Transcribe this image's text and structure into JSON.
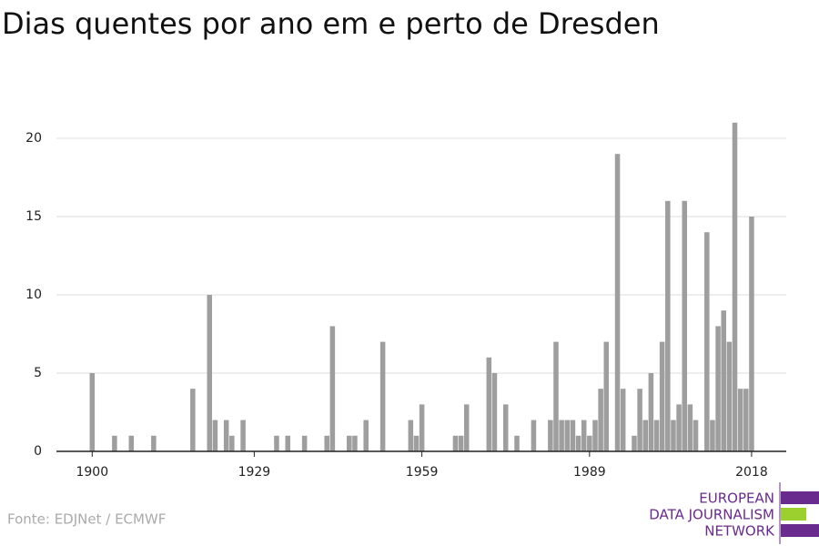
{
  "chart_data": {
    "type": "bar",
    "title": "Dias quentes por ano em e perto de Dresden",
    "source": "Fonte: EDJNet / ECMWF",
    "logo": [
      "EUROPEAN",
      "DATA JOURNALISM",
      "NETWORK"
    ],
    "color": "#9e9e9e",
    "x": [
      1900,
      1904,
      1907,
      1911,
      1918,
      1921,
      1922,
      1924,
      1925,
      1927,
      1933,
      1935,
      1938,
      1942,
      1943,
      1946,
      1947,
      1949,
      1952,
      1957,
      1958,
      1959,
      1965,
      1966,
      1967,
      1971,
      1972,
      1974,
      1976,
      1979,
      1982,
      1983,
      1984,
      1985,
      1986,
      1987,
      1988,
      1989,
      1990,
      1991,
      1992,
      1994,
      1995,
      1997,
      1998,
      1999,
      2000,
      2001,
      2002,
      2003,
      2004,
      2005,
      2006,
      2007,
      2008,
      2010,
      2011,
      2012,
      2013,
      2014,
      2015,
      2016,
      2017,
      2018
    ],
    "values": [
      5,
      1,
      1,
      1,
      4,
      10,
      2,
      2,
      1,
      2,
      1,
      1,
      1,
      1,
      8,
      1,
      1,
      2,
      7,
      2,
      1,
      3,
      1,
      1,
      3,
      6,
      5,
      3,
      1,
      2,
      2,
      7,
      2,
      2,
      2,
      1,
      2,
      1,
      2,
      4,
      7,
      19,
      4,
      1,
      4,
      2,
      5,
      2,
      7,
      16,
      2,
      3,
      16,
      3,
      2,
      14,
      2,
      8,
      9,
      7,
      21,
      4,
      4,
      15
    ],
    "xlim": [
      1893.6,
      2024.2
    ],
    "xticks": [
      1900,
      1929,
      1959,
      1989,
      2018
    ],
    "ylim": [
      0,
      22
    ],
    "yticks": [
      0,
      5,
      10,
      15,
      20
    ],
    "grid": true
  }
}
